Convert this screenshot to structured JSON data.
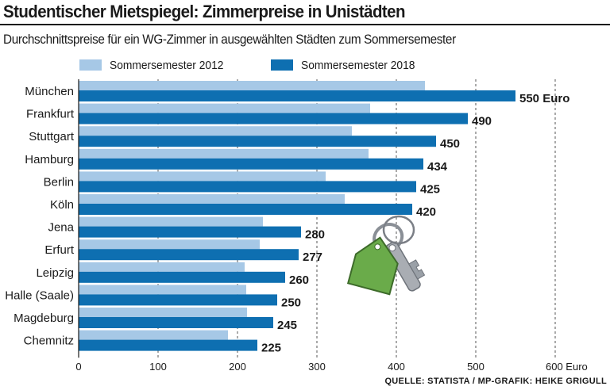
{
  "title": "Studentischer Mietspiegel: Zimmerpreise in Unistädten",
  "subtitle": "Durchschnittspreise für ein WG-Zimmer in ausgewählten Städten zum Sommersemester",
  "source": "QUELLE: STATISTA / MP-GRAFIK: HEIKE GRIGULL",
  "colors": {
    "series_2012": "#a6c8e6",
    "series_2018": "#0e6fb1",
    "grid": "#555555",
    "key_tag": "#6aab4a",
    "key_metal": "#a9adb3"
  },
  "icons": [
    "house-keychain-icon",
    "key-icon"
  ],
  "chart_data": {
    "type": "bar",
    "orientation": "horizontal",
    "categories": [
      "München",
      "Frankfurt",
      "Stuttgart",
      "Hamburg",
      "Berlin",
      "Köln",
      "Jena",
      "Erfurt",
      "Leipzig",
      "Halle (Saale)",
      "Magdeburg",
      "Chemnitz"
    ],
    "series": [
      {
        "name": "Sommersemester 2012",
        "values": [
          436,
          367,
          344,
          365,
          311,
          335,
          232,
          228,
          209,
          211,
          212,
          188
        ],
        "labels": null
      },
      {
        "name": "Sommersemester 2018",
        "values": [
          550,
          490,
          450,
          434,
          425,
          420,
          280,
          277,
          260,
          250,
          245,
          225
        ],
        "labels": [
          "550 Euro",
          "490",
          "450",
          "434",
          "425",
          "420",
          "280",
          "277",
          "260",
          "250",
          "245",
          "225"
        ]
      }
    ],
    "xlim": [
      0,
      600
    ],
    "xticks": [
      0,
      100,
      200,
      300,
      400,
      500,
      600
    ],
    "xtick_labels": [
      "0",
      "100",
      "200",
      "300",
      "400",
      "500",
      "600 Euro"
    ],
    "grid": "vertical dashed",
    "legend": "top"
  }
}
